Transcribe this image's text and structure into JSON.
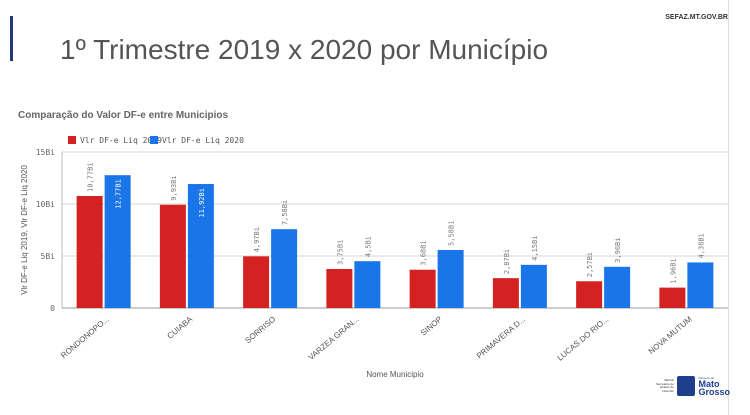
{
  "header": {
    "site": "SEFAZ.MT.GOV.BR",
    "title": "1º Trimestre 2019 x 2020 por Município"
  },
  "logo": {
    "agency": "SEFAZ Secretaria de Estado de Fazenda",
    "gov": "Governo de",
    "name": "Mato Grosso"
  },
  "chart_data": {
    "type": "bar",
    "title": "Comparação do Valor DF-e entre Municipios",
    "xlabel": "Nome Municipio",
    "ylabel": "Vlr DF-e Liq 2019, Vlr DF-e Liq 2020",
    "ylim": [
      0,
      15
    ],
    "yticks": [
      0,
      5,
      10,
      15
    ],
    "ytick_labels": [
      "0",
      "5Bi",
      "10Bi",
      "15Bi"
    ],
    "legend_position": "top-left",
    "categories": [
      "RONDONOPO...",
      "CUIABA",
      "SORRISO",
      "VARZEA GRAN...",
      "SINOP",
      "PRIMAVERA D...",
      "LUCAS DO RIO...",
      "NOVA MUTUM"
    ],
    "series": [
      {
        "name": "Vlr DF-e Liq 2019",
        "color": "#d42222",
        "values": [
          10.77,
          9.93,
          4.97,
          3.75,
          3.68,
          2.87,
          2.57,
          1.96
        ],
        "labels": [
          "10,77Bi",
          "9,93Bi",
          "4,97Bi",
          "3,75Bi",
          "3,68Bi",
          "2,87Bi",
          "2,57Bi",
          "1,96Bi"
        ]
      },
      {
        "name": "Vlr DF-e Liq 2020",
        "color": "#1a75e8",
        "values": [
          12.77,
          11.92,
          7.58,
          4.5,
          5.58,
          4.15,
          3.96,
          4.38
        ],
        "labels": [
          "12,77Bi",
          "11,92Bi",
          "7,58Bi",
          "4,5Bi",
          "5,58Bi",
          "4,15Bi",
          "3,96Bi",
          "4,38Bi"
        ]
      }
    ]
  }
}
